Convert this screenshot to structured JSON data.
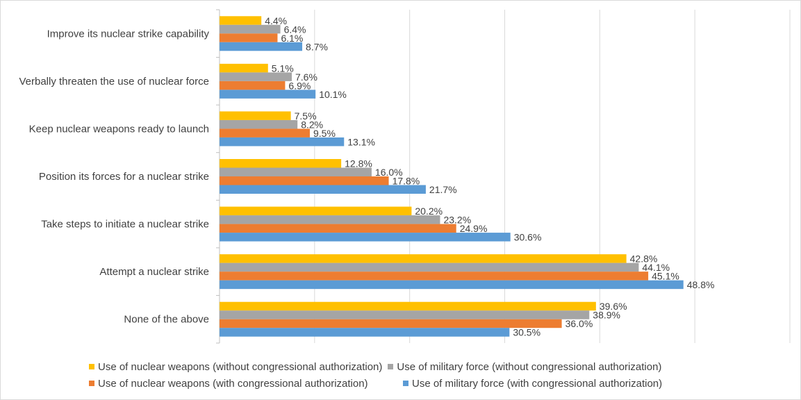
{
  "chart_data": {
    "type": "bar",
    "orientation": "horizontal",
    "categories": [
      "Improve its nuclear strike capability",
      "Verbally threaten the use of nuclear force",
      "Keep nuclear weapons ready to launch",
      "Position its forces for a nuclear strike",
      "Take steps to initiate a nuclear strike",
      "Attempt a nuclear strike",
      "None of the above"
    ],
    "series": [
      {
        "name": "Use of nuclear weapons (without congressional authorization)",
        "color": "#ffc000",
        "values": [
          4.4,
          5.1,
          7.5,
          12.8,
          20.2,
          42.8,
          39.6
        ],
        "labels": [
          "4.4%",
          "5.1%",
          "7.5%",
          "12.8%",
          "20.2%",
          "42.8%",
          "39.6%"
        ]
      },
      {
        "name": "Use of military force (without congressional authorization)",
        "color": "#a5a5a5",
        "values": [
          6.4,
          7.6,
          8.2,
          16.0,
          23.2,
          44.1,
          38.9
        ],
        "labels": [
          "6.4%",
          "7.6%",
          "8.2%",
          "16.0%",
          "23.2%",
          "44.1%",
          "38.9%"
        ]
      },
      {
        "name": "Use of nuclear weapons (with congressional authorization)",
        "color": "#ed7d31",
        "values": [
          6.1,
          6.9,
          9.5,
          17.8,
          24.9,
          45.1,
          36.0
        ],
        "labels": [
          "6.1%",
          "6.9%",
          "9.5%",
          "17.8%",
          "24.9%",
          "45.1%",
          "36.0%"
        ]
      },
      {
        "name": "Use of military force (with congressional authorization)",
        "color": "#5b9bd5",
        "values": [
          8.7,
          10.1,
          13.1,
          21.7,
          30.6,
          48.8,
          30.5
        ],
        "labels": [
          "8.7%",
          "10.1%",
          "13.1%",
          "21.7%",
          "30.6%",
          "48.8%",
          "30.5%"
        ]
      }
    ],
    "xlim": [
      0,
      60
    ],
    "grid": true,
    "legend_position": "bottom"
  }
}
